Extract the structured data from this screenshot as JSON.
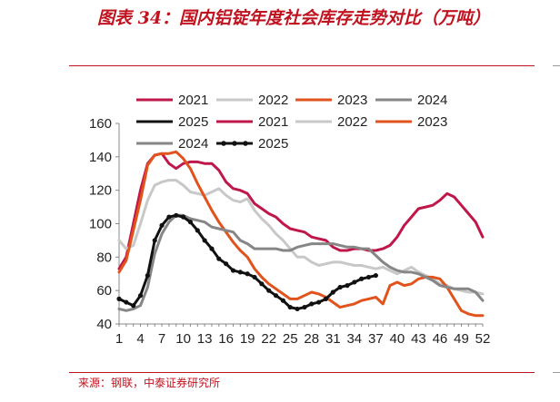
{
  "header": {
    "title": "图表 34：国内铝锭年度社会库存走势对比（万吨）"
  },
  "footer": {
    "source": "来源：钢联，中泰证券研究所"
  },
  "chart_data": {
    "type": "line",
    "title": "",
    "xlabel": "",
    "ylabel": "",
    "ylim": [
      40,
      160
    ],
    "xlim": [
      1,
      52
    ],
    "yticks": [
      "40",
      "60",
      "80",
      "100",
      "120",
      "140",
      "160"
    ],
    "xticks": [
      "1",
      "4",
      "7",
      "10",
      "13",
      "16",
      "19",
      "22",
      "25",
      "28",
      "31",
      "34",
      "37",
      "40",
      "43",
      "46",
      "49",
      "52"
    ],
    "grid": false,
    "legend": {
      "placement": "top",
      "entries": [
        "2021",
        "2022",
        "2023",
        "2024",
        "2025",
        "2021",
        "2022",
        "2023",
        "2024",
        "2025"
      ]
    },
    "series": [
      {
        "name": "2021",
        "color": "#c0174a",
        "values": [
          73,
          80,
          100,
          120,
          136,
          141,
          142,
          136,
          133,
          136,
          137,
          137,
          136,
          136,
          132,
          125,
          121,
          120,
          118,
          112,
          109,
          106,
          104,
          100,
          97,
          96,
          95,
          92,
          91,
          90,
          86,
          84,
          84,
          85,
          85,
          84,
          84,
          85,
          87,
          92,
          99,
          104,
          109,
          110,
          111,
          114,
          118,
          116,
          111,
          106,
          101,
          92
        ]
      },
      {
        "name": "2022",
        "color": "#c8c8c8",
        "values": [
          90,
          85,
          87,
          100,
          114,
          123,
          125,
          126,
          126,
          123,
          119,
          118,
          117,
          119,
          121,
          117,
          114,
          113,
          115,
          108,
          103,
          99,
          94,
          90,
          85,
          80,
          80,
          77,
          75,
          76,
          77,
          77,
          76,
          75,
          75,
          74,
          73,
          74,
          72,
          70,
          72,
          74,
          71,
          69,
          67,
          64,
          63,
          61,
          60,
          59,
          59,
          58
        ]
      },
      {
        "name": "2023",
        "color": "#e1531c",
        "values": [
          71,
          78,
          96,
          114,
          135,
          141,
          142,
          142,
          143,
          139,
          133,
          124,
          116,
          108,
          101,
          95,
          89,
          84,
          80,
          73,
          68,
          64,
          61,
          58,
          55,
          55,
          57,
          59,
          58,
          56,
          53,
          50,
          51,
          52,
          54,
          55,
          56,
          52,
          63,
          65,
          63,
          64,
          67,
          68,
          68,
          67,
          62,
          55,
          48,
          46,
          45,
          45
        ]
      },
      {
        "name": "2024",
        "color": "#868686",
        "values": [
          49,
          48,
          49,
          51,
          62,
          82,
          94,
          101,
          105,
          105,
          103,
          102,
          101,
          98,
          97,
          96,
          95,
          90,
          88,
          85,
          85,
          85,
          85,
          84,
          84,
          86,
          87,
          88,
          88,
          88,
          88,
          87,
          86,
          86,
          85,
          85,
          81,
          77,
          74,
          72,
          71,
          71,
          70,
          68,
          66,
          63,
          62,
          61,
          61,
          61,
          59,
          54
        ]
      },
      {
        "name": "2025",
        "color": "#111111",
        "values": [
          55,
          53,
          51,
          57,
          69,
          90,
          99,
          104,
          105,
          104,
          101,
          96,
          90,
          85,
          79,
          76,
          72,
          71,
          70,
          68,
          64,
          60,
          57,
          54,
          50,
          49,
          50,
          52,
          53,
          55,
          59,
          62,
          63,
          65,
          67,
          68,
          69
        ]
      }
    ]
  }
}
